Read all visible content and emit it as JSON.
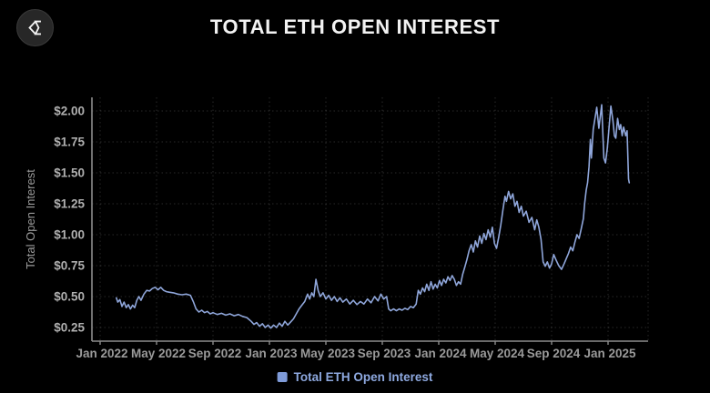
{
  "title": "TOTAL ETH OPEN INTEREST",
  "logo": {
    "icon": "sigma-diamond"
  },
  "legend": {
    "label": "Total ETH Open Interest"
  },
  "colors": {
    "background": "#000000",
    "title_text": "#f2f2f2",
    "line": "#8fa6da",
    "legend_swatch": "#7f9bd9",
    "legend_text": "#8ea9e0",
    "axis": "#8c8c8c",
    "x_tick_label": "#9a9a9a",
    "y_tick_label": "#b0b0b0",
    "axis_title": "#9a9a9a",
    "grid": "rgba(255,255,255,0.16)",
    "logo_bg": "#272727",
    "logo_glyph": "#f5f5f5"
  },
  "chart_data": {
    "type": "line",
    "title": "TOTAL ETH OPEN INTEREST",
    "xlabel": "",
    "ylabel": "Total Open Interest",
    "x_unit": "months since Jan 2022",
    "grid": "dotted",
    "legend_position": "bottom",
    "xlim": [
      -0.6,
      38.8
    ],
    "ylim": [
      0.14,
      2.11
    ],
    "x_ticks": [
      {
        "m": 0,
        "label": "Jan 2022"
      },
      {
        "m": 4,
        "label": "May 2022"
      },
      {
        "m": 8,
        "label": "Sep 2022"
      },
      {
        "m": 12,
        "label": "Jan 2023"
      },
      {
        "m": 16,
        "label": "May 2023"
      },
      {
        "m": 20,
        "label": "Sep 2023"
      },
      {
        "m": 24,
        "label": "Jan 2024"
      },
      {
        "m": 28,
        "label": "May 2024"
      },
      {
        "m": 32,
        "label": "Sep 2024"
      },
      {
        "m": 36,
        "label": "Jan 2025"
      }
    ],
    "y_ticks": [
      {
        "v": 0.25,
        "label": "$0.25"
      },
      {
        "v": 0.5,
        "label": "$0.50"
      },
      {
        "v": 0.75,
        "label": "$0.75"
      },
      {
        "v": 1.0,
        "label": "$1.00"
      },
      {
        "v": 1.25,
        "label": "$1.25"
      },
      {
        "v": 1.5,
        "label": "$1.50"
      },
      {
        "v": 1.75,
        "label": "$1.75"
      },
      {
        "v": 2.0,
        "label": "$2.00"
      }
    ],
    "series": [
      {
        "name": "Total ETH Open Interest",
        "points": [
          [
            1.15,
            0.49
          ],
          [
            1.25,
            0.455
          ],
          [
            1.4,
            0.475
          ],
          [
            1.55,
            0.42
          ],
          [
            1.7,
            0.455
          ],
          [
            1.85,
            0.41
          ],
          [
            2.0,
            0.435
          ],
          [
            2.15,
            0.4
          ],
          [
            2.3,
            0.43
          ],
          [
            2.45,
            0.41
          ],
          [
            2.6,
            0.47
          ],
          [
            2.75,
            0.5
          ],
          [
            2.9,
            0.47
          ],
          [
            3.1,
            0.52
          ],
          [
            3.3,
            0.55
          ],
          [
            3.5,
            0.545
          ],
          [
            3.7,
            0.565
          ],
          [
            3.9,
            0.575
          ],
          [
            4.1,
            0.555
          ],
          [
            4.3,
            0.575
          ],
          [
            4.5,
            0.55
          ],
          [
            4.7,
            0.54
          ],
          [
            4.9,
            0.535
          ],
          [
            5.2,
            0.53
          ],
          [
            5.5,
            0.52
          ],
          [
            5.8,
            0.515
          ],
          [
            6.1,
            0.52
          ],
          [
            6.4,
            0.51
          ],
          [
            6.6,
            0.46
          ],
          [
            6.8,
            0.4
          ],
          [
            7.0,
            0.375
          ],
          [
            7.2,
            0.39
          ],
          [
            7.4,
            0.37
          ],
          [
            7.6,
            0.38
          ],
          [
            7.8,
            0.36
          ],
          [
            8.0,
            0.37
          ],
          [
            8.3,
            0.355
          ],
          [
            8.6,
            0.365
          ],
          [
            8.9,
            0.35
          ],
          [
            9.2,
            0.36
          ],
          [
            9.5,
            0.345
          ],
          [
            9.8,
            0.355
          ],
          [
            10.1,
            0.34
          ],
          [
            10.4,
            0.33
          ],
          [
            10.7,
            0.3
          ],
          [
            10.9,
            0.275
          ],
          [
            11.1,
            0.29
          ],
          [
            11.3,
            0.26
          ],
          [
            11.5,
            0.28
          ],
          [
            11.7,
            0.25
          ],
          [
            11.9,
            0.27
          ],
          [
            12.1,
            0.245
          ],
          [
            12.3,
            0.27
          ],
          [
            12.5,
            0.25
          ],
          [
            12.7,
            0.285
          ],
          [
            12.9,
            0.26
          ],
          [
            13.1,
            0.3
          ],
          [
            13.3,
            0.27
          ],
          [
            13.5,
            0.295
          ],
          [
            13.7,
            0.32
          ],
          [
            13.9,
            0.36
          ],
          [
            14.1,
            0.4
          ],
          [
            14.3,
            0.43
          ],
          [
            14.5,
            0.46
          ],
          [
            14.7,
            0.52
          ],
          [
            14.85,
            0.48
          ],
          [
            15.0,
            0.53
          ],
          [
            15.15,
            0.5
          ],
          [
            15.3,
            0.64
          ],
          [
            15.45,
            0.55
          ],
          [
            15.6,
            0.5
          ],
          [
            15.8,
            0.53
          ],
          [
            16.0,
            0.48
          ],
          [
            16.2,
            0.51
          ],
          [
            16.4,
            0.47
          ],
          [
            16.6,
            0.5
          ],
          [
            16.8,
            0.46
          ],
          [
            17.0,
            0.49
          ],
          [
            17.2,
            0.455
          ],
          [
            17.45,
            0.48
          ],
          [
            17.7,
            0.44
          ],
          [
            17.95,
            0.47
          ],
          [
            18.2,
            0.435
          ],
          [
            18.45,
            0.46
          ],
          [
            18.7,
            0.44
          ],
          [
            18.95,
            0.48
          ],
          [
            19.2,
            0.45
          ],
          [
            19.45,
            0.5
          ],
          [
            19.7,
            0.465
          ],
          [
            19.9,
            0.52
          ],
          [
            20.1,
            0.48
          ],
          [
            20.3,
            0.5
          ],
          [
            20.45,
            0.4
          ],
          [
            20.6,
            0.385
          ],
          [
            20.8,
            0.4
          ],
          [
            21.0,
            0.385
          ],
          [
            21.2,
            0.4
          ],
          [
            21.4,
            0.39
          ],
          [
            21.6,
            0.405
          ],
          [
            21.8,
            0.395
          ],
          [
            22.0,
            0.42
          ],
          [
            22.2,
            0.41
          ],
          [
            22.4,
            0.44
          ],
          [
            22.55,
            0.55
          ],
          [
            22.7,
            0.52
          ],
          [
            22.85,
            0.57
          ],
          [
            23.0,
            0.54
          ],
          [
            23.15,
            0.6
          ],
          [
            23.3,
            0.55
          ],
          [
            23.45,
            0.62
          ],
          [
            23.6,
            0.56
          ],
          [
            23.75,
            0.6
          ],
          [
            23.9,
            0.57
          ],
          [
            24.05,
            0.63
          ],
          [
            24.2,
            0.59
          ],
          [
            24.35,
            0.64
          ],
          [
            24.5,
            0.61
          ],
          [
            24.65,
            0.66
          ],
          [
            24.8,
            0.63
          ],
          [
            24.95,
            0.67
          ],
          [
            25.1,
            0.64
          ],
          [
            25.25,
            0.59
          ],
          [
            25.4,
            0.62
          ],
          [
            25.55,
            0.6
          ],
          [
            25.7,
            0.68
          ],
          [
            25.85,
            0.74
          ],
          [
            26.0,
            0.8
          ],
          [
            26.15,
            0.87
          ],
          [
            26.3,
            0.92
          ],
          [
            26.45,
            0.86
          ],
          [
            26.6,
            0.95
          ],
          [
            26.75,
            0.9
          ],
          [
            26.9,
            0.99
          ],
          [
            27.05,
            0.93
          ],
          [
            27.2,
            1.01
          ],
          [
            27.35,
            0.96
          ],
          [
            27.5,
            1.04
          ],
          [
            27.65,
            0.98
          ],
          [
            27.8,
            1.06
          ],
          [
            27.95,
            0.93
          ],
          [
            28.1,
            0.89
          ],
          [
            28.25,
            0.98
          ],
          [
            28.4,
            1.08
          ],
          [
            28.55,
            1.2
          ],
          [
            28.7,
            1.31
          ],
          [
            28.8,
            1.27
          ],
          [
            28.95,
            1.35
          ],
          [
            29.1,
            1.29
          ],
          [
            29.25,
            1.33
          ],
          [
            29.4,
            1.23
          ],
          [
            29.55,
            1.27
          ],
          [
            29.7,
            1.18
          ],
          [
            29.85,
            1.23
          ],
          [
            30.0,
            1.15
          ],
          [
            30.2,
            1.19
          ],
          [
            30.4,
            1.1
          ],
          [
            30.6,
            1.14
          ],
          [
            30.8,
            1.04
          ],
          [
            30.95,
            1.12
          ],
          [
            31.1,
            1.06
          ],
          [
            31.25,
            0.96
          ],
          [
            31.4,
            0.78
          ],
          [
            31.55,
            0.745
          ],
          [
            31.7,
            0.78
          ],
          [
            31.85,
            0.73
          ],
          [
            32.0,
            0.765
          ],
          [
            32.15,
            0.84
          ],
          [
            32.3,
            0.8
          ],
          [
            32.5,
            0.75
          ],
          [
            32.7,
            0.72
          ],
          [
            32.9,
            0.77
          ],
          [
            33.05,
            0.81
          ],
          [
            33.2,
            0.85
          ],
          [
            33.35,
            0.9
          ],
          [
            33.5,
            0.87
          ],
          [
            33.65,
            0.94
          ],
          [
            33.8,
            1.0
          ],
          [
            33.95,
            0.97
          ],
          [
            34.1,
            1.05
          ],
          [
            34.25,
            1.13
          ],
          [
            34.35,
            1.26
          ],
          [
            34.45,
            1.36
          ],
          [
            34.55,
            1.42
          ],
          [
            34.65,
            1.55
          ],
          [
            34.75,
            1.77
          ],
          [
            34.82,
            1.62
          ],
          [
            34.95,
            1.85
          ],
          [
            35.2,
            2.03
          ],
          [
            35.35,
            1.86
          ],
          [
            35.55,
            2.05
          ],
          [
            35.7,
            1.62
          ],
          [
            35.82,
            1.58
          ],
          [
            35.95,
            1.7
          ],
          [
            36.2,
            2.04
          ],
          [
            36.35,
            1.92
          ],
          [
            36.45,
            1.8
          ],
          [
            36.55,
            1.78
          ],
          [
            36.68,
            1.94
          ],
          [
            36.8,
            1.85
          ],
          [
            36.9,
            1.89
          ],
          [
            37.0,
            1.8
          ],
          [
            37.1,
            1.87
          ],
          [
            37.25,
            1.8
          ],
          [
            37.35,
            1.84
          ],
          [
            37.45,
            1.45
          ],
          [
            37.5,
            1.42
          ]
        ]
      }
    ]
  }
}
